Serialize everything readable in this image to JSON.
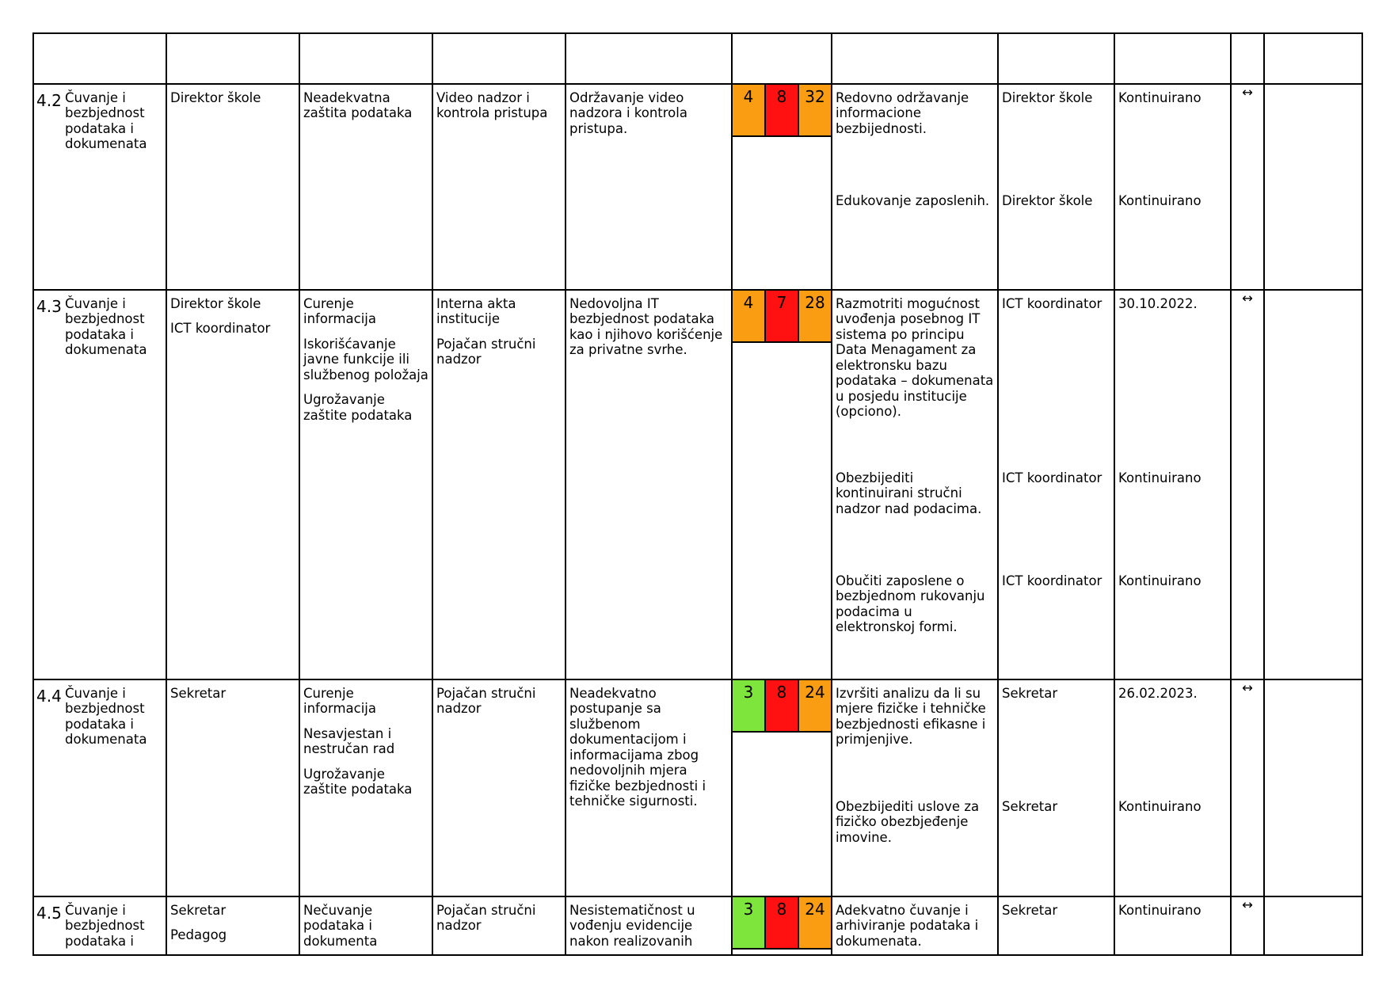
{
  "colors": {
    "green": "#7ee53c",
    "orange": "#fa9d12",
    "red": "#ff1111"
  },
  "trend_symbol": "↔",
  "rows": [
    {
      "num": "4.2",
      "area": "Čuvanje i bezbjednost podataka i dokumenata",
      "responsible": [
        "Direktor škole"
      ],
      "risks": [
        "Neadekvatna zaštita podataka"
      ],
      "existing_controls": [
        "Video nadzor i kontrola pristupa"
      ],
      "description": "Održavanje video nadzora i kontrola pristupa.",
      "scores": [
        {
          "value": "4",
          "color": "orange"
        },
        {
          "value": "8",
          "color": "red"
        },
        {
          "value": "32",
          "color": "orange"
        }
      ],
      "measures": [
        {
          "text": "Redovno održavanje informacione bezbijednosti.",
          "responsible": "Direktor škole",
          "deadline": "Kontinuirano"
        },
        {
          "text": "Edukovanje zaposlenih.",
          "responsible": "Direktor škole",
          "deadline": "Kontinuirano"
        }
      ],
      "trend": "↔"
    },
    {
      "num": "4.3",
      "area": "Čuvanje i bezbjednost podataka i dokumenata",
      "responsible": [
        "Direktor škole",
        "ICT koordinator"
      ],
      "risks": [
        "Curenje informacija",
        "Iskorišćavanje javne funkcije ili službenog položaja",
        "Ugrožavanje zaštite podataka"
      ],
      "existing_controls": [
        "Interna akta institucije",
        "Pojačan stručni nadzor"
      ],
      "description": "Nedovoljna IT bezbjednost podataka kao i njihovo korišćenje za privatne svrhe.",
      "scores": [
        {
          "value": "4",
          "color": "orange"
        },
        {
          "value": "7",
          "color": "red"
        },
        {
          "value": "28",
          "color": "orange"
        }
      ],
      "measures": [
        {
          "text": "Razmotriti mogućnost uvođenja posebnog IT sistema po principu Data Menagament za elektronsku bazu podataka – dokumenata u posjedu institucije (opciono).",
          "responsible": "ICT koordinator",
          "deadline": "30.10.2022."
        },
        {
          "text": "Obezbijediti kontinuirani stručni nadzor nad podacima.",
          "responsible": "ICT koordinator",
          "deadline": "Kontinuirano"
        },
        {
          "text": "Obučiti zaposlene o bezbjednom rukovanju podacima u elektronskoj formi.",
          "responsible": "ICT koordinator",
          "deadline": "Kontinuirano"
        }
      ],
      "trend": "↔"
    },
    {
      "num": "4.4",
      "area": "Čuvanje i bezbjednost podataka i dokumenata",
      "responsible": [
        "Sekretar"
      ],
      "risks": [
        "Curenje informacija",
        "Nesavjestan i nestručan rad",
        "Ugrožavanje zaštite podataka"
      ],
      "existing_controls": [
        "Pojačan stručni nadzor"
      ],
      "description": "Neadekvatno postupanje sa službenom dokumentacijom i informacijama zbog nedovoljnih mjera fizičke bezbjednosti i tehničke sigurnosti.",
      "scores": [
        {
          "value": "3",
          "color": "green"
        },
        {
          "value": "8",
          "color": "red"
        },
        {
          "value": "24",
          "color": "orange"
        }
      ],
      "measures": [
        {
          "text": "Izvršiti analizu da li su mjere fizičke i tehničke bezbjednosti efikasne i primjenjive.",
          "responsible": "Sekretar",
          "deadline": "26.02.2023."
        },
        {
          "text": "Obezbijediti uslove za fizičko obezbjeđenje imovine.",
          "responsible": "Sekretar",
          "deadline": "Kontinuirano"
        }
      ],
      "trend": "↔"
    },
    {
      "num": "4.5",
      "area": "Čuvanje i bezbjednost podataka i",
      "responsible": [
        "Sekretar",
        "Pedagog"
      ],
      "risks": [
        "Nečuvanje podataka i dokumenta"
      ],
      "existing_controls": [
        "Pojačan stručni nadzor"
      ],
      "description": "Nesistematičnost u vođenju evidencije nakon realizovanih",
      "scores": [
        {
          "value": "3",
          "color": "green"
        },
        {
          "value": "8",
          "color": "red"
        },
        {
          "value": "24",
          "color": "orange"
        }
      ],
      "measures": [
        {
          "text": "Adekvatno čuvanje i arhiviranje podataka i dokumenata.",
          "responsible": "Sekretar",
          "deadline": "Kontinuirano"
        }
      ],
      "trend": "↔"
    }
  ]
}
